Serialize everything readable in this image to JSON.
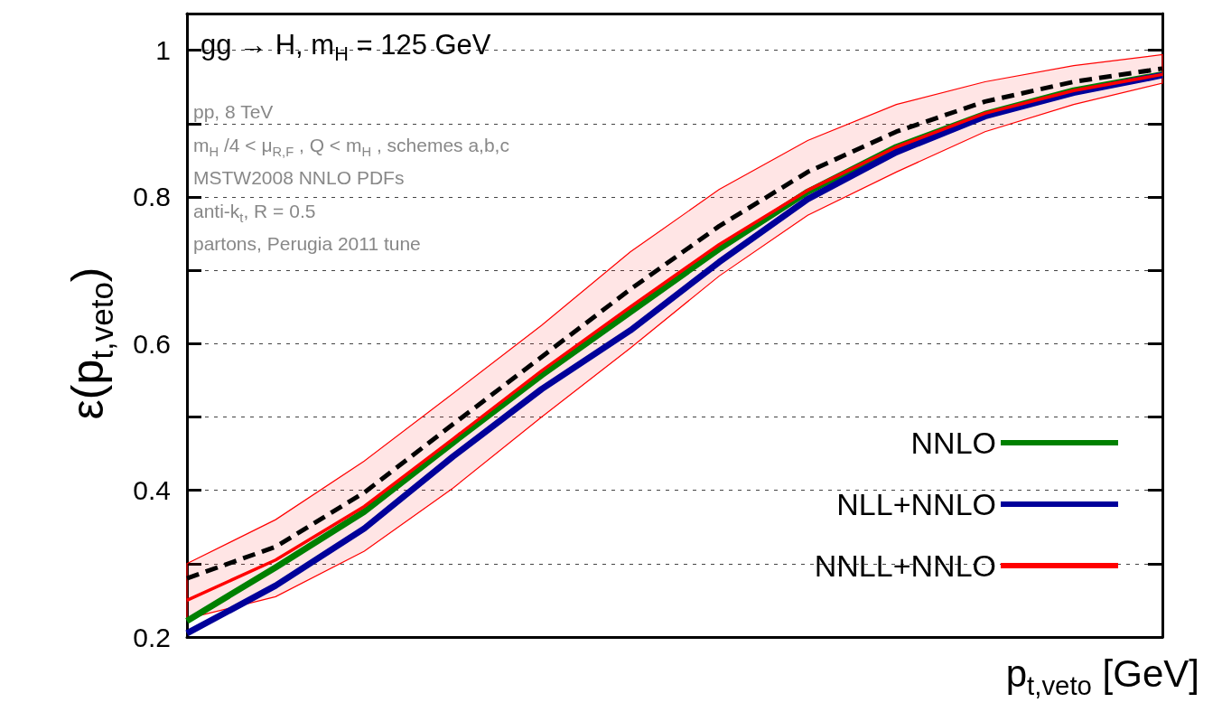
{
  "chart_data": {
    "type": "line",
    "xlabel": "p$_{t,veto}$ [GeV]",
    "ylabel": "ε(p$_{t,veto}$)",
    "categories": [
      null,
      null,
      null,
      null,
      null,
      null,
      null,
      null,
      null,
      null,
      null,
      null
    ],
    "series": [
      {
        "name": "NNLO",
        "color": "#008000",
        "line_style": "solid",
        "values": [
          0.222,
          0.295,
          0.371,
          0.465,
          0.557,
          0.643,
          0.729,
          0.807,
          0.868,
          0.913,
          0.945,
          0.967
        ]
      },
      {
        "name": "NLL+NNLO",
        "color": "#00009a",
        "line_style": "solid",
        "values": [
          0.205,
          0.27,
          0.348,
          0.446,
          0.538,
          0.618,
          0.711,
          0.797,
          0.861,
          0.91,
          0.942,
          0.966
        ]
      },
      {
        "name": "NNLL+NNLO",
        "color": "#ff0000",
        "line_style": "solid",
        "values": [
          0.25,
          0.305,
          0.378,
          0.47,
          0.563,
          0.65,
          0.735,
          0.809,
          0.868,
          0.914,
          0.945,
          0.967
        ],
        "lower": [
          0.225,
          0.255,
          0.317,
          0.403,
          0.5,
          0.594,
          0.692,
          0.775,
          0.834,
          0.889,
          0.926,
          0.955
        ],
        "upper": [
          0.3,
          0.36,
          0.44,
          0.532,
          0.625,
          0.725,
          0.81,
          0.877,
          0.926,
          0.957,
          0.979,
          0.994
        ]
      },
      {
        "color": "#000000",
        "line_style": "dashed",
        "values": [
          0.28,
          0.323,
          0.397,
          0.49,
          0.582,
          0.674,
          0.76,
          0.834,
          0.889,
          0.93,
          0.957,
          0.975
        ]
      }
    ],
    "ylim": [
      0.2,
      1.05
    ],
    "yticks": [
      0.2,
      {
        "value": 0.3,
        "label": null
      },
      0.4,
      {
        "value": 0.5,
        "label": null
      },
      0.6,
      {
        "value": 0.7,
        "label": null
      },
      0.8,
      {
        "value": 0.9,
        "label": null
      },
      1
    ],
    "tick_labels": "y",
    "grid": "y",
    "legend": "bottom right",
    "marker": "none",
    "annotations": [
      "gg → H, m$_{H}$ = 125 GeV",
      "pp, 8 TeV",
      "m$_{H}$ /4 < μ$_{R,F}$ , Q < m$_{H}$ , schemes a,b,c",
      "MSTW2008 NNLO PDFs",
      "anti-k$_{t}$, R = 0.5",
      "partons, Perugia 2011 tune"
    ]
  }
}
